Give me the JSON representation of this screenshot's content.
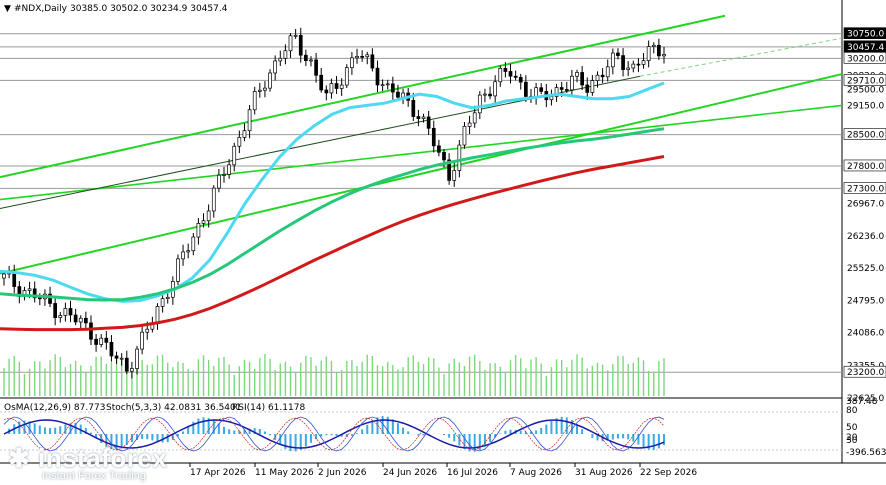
{
  "chart_data": {
    "type": "candlestick",
    "title": "#NDX,Daily",
    "ohlc_header": "30385.0 30502.0 30234.9 30457.4",
    "price_axis_ticks": [
      "30750.0",
      "30457.4",
      "30200.0",
      "29820.0",
      "29710.0",
      "29500.0",
      "29150.0",
      "28500.0",
      "27800.0",
      "27300.0",
      "26967.0",
      "26236.0",
      "25525.0",
      "24795.0",
      "24086.0",
      "23355.0",
      "23200.0",
      "22625.0"
    ],
    "highlighted_levels": [
      {
        "label": "30750.0",
        "color": "#ffffff",
        "bg": "#000000"
      },
      {
        "label": "30457.4",
        "color": "#ffffff",
        "bg": "#000000"
      },
      {
        "label": "30200.0",
        "color": "#000000",
        "bg": "#ffffff"
      },
      {
        "label": "29710.0",
        "color": "#000000",
        "bg": "#ffffff"
      },
      {
        "label": "28500.0",
        "color": "#000000",
        "bg": "#ffffff"
      },
      {
        "label": "27800.0",
        "color": "#000000",
        "bg": "#ffffff"
      },
      {
        "label": "27300.0",
        "color": "#000000",
        "bg": "#ffffff"
      },
      {
        "label": "23200.0",
        "color": "#000000",
        "bg": "#ffffff"
      }
    ],
    "time_axis_ticks": [
      "17 Apr 2026",
      "11 May 2026",
      "2 Jun 2026",
      "24 Jun 2026",
      "16 Jul 2026",
      "7 Aug 2026",
      "31 Aug 2026",
      "22 Sep 2026"
    ],
    "ylim": [
      22625,
      31100
    ],
    "series": [
      {
        "name": "EMA cyan",
        "color": "#4dd9f0",
        "values": [
          25450,
          25420,
          25360,
          25260,
          25100,
          24950,
          24840,
          24780,
          24800,
          24900,
          25050,
          25300,
          25700,
          26300,
          26950,
          27500,
          28000,
          28400,
          28700,
          28950,
          29100,
          29150,
          29200,
          29300,
          29400,
          29350,
          29200,
          29100,
          29150,
          29250,
          29300,
          29350,
          29400,
          29350,
          29300,
          29300,
          29350,
          29500,
          29650
        ]
      },
      {
        "name": "EMA green",
        "color": "#26c77a",
        "values": [
          24950,
          24920,
          24900,
          24880,
          24850,
          24820,
          24810,
          24820,
          24870,
          24950,
          25060,
          25200,
          25380,
          25600,
          25850,
          26100,
          26350,
          26580,
          26800,
          27000,
          27180,
          27340,
          27480,
          27600,
          27720,
          27820,
          27900,
          27980,
          28050,
          28120,
          28190,
          28250,
          28310,
          28360,
          28400,
          28450,
          28510,
          28570,
          28630
        ]
      },
      {
        "name": "EMA red",
        "color": "#d21919",
        "values": [
          24170,
          24160,
          24150,
          24150,
          24150,
          24160,
          24180,
          24200,
          24240,
          24300,
          24380,
          24490,
          24620,
          24780,
          24950,
          25130,
          25320,
          25510,
          25700,
          25880,
          26060,
          26230,
          26400,
          26560,
          26700,
          26830,
          26950,
          27060,
          27170,
          27270,
          27370,
          27470,
          27560,
          27650,
          27730,
          27800,
          27870,
          27940,
          28010
        ]
      }
    ],
    "price_line_label": "30457.4",
    "oscillators": {
      "osma_label": "OsMA(12,26,9) 87.773",
      "stoch_label": "Stoch(5,3,3) 42.0831 36.5401",
      "rsi_label": "RSI(14) 61.1178",
      "axis_ticks": [
        "387.48",
        "80",
        "50",
        "20",
        "30",
        "-396.563"
      ]
    }
  },
  "watermark": {
    "brand": "instaforex",
    "tagline": "Instant Forex Trading"
  }
}
